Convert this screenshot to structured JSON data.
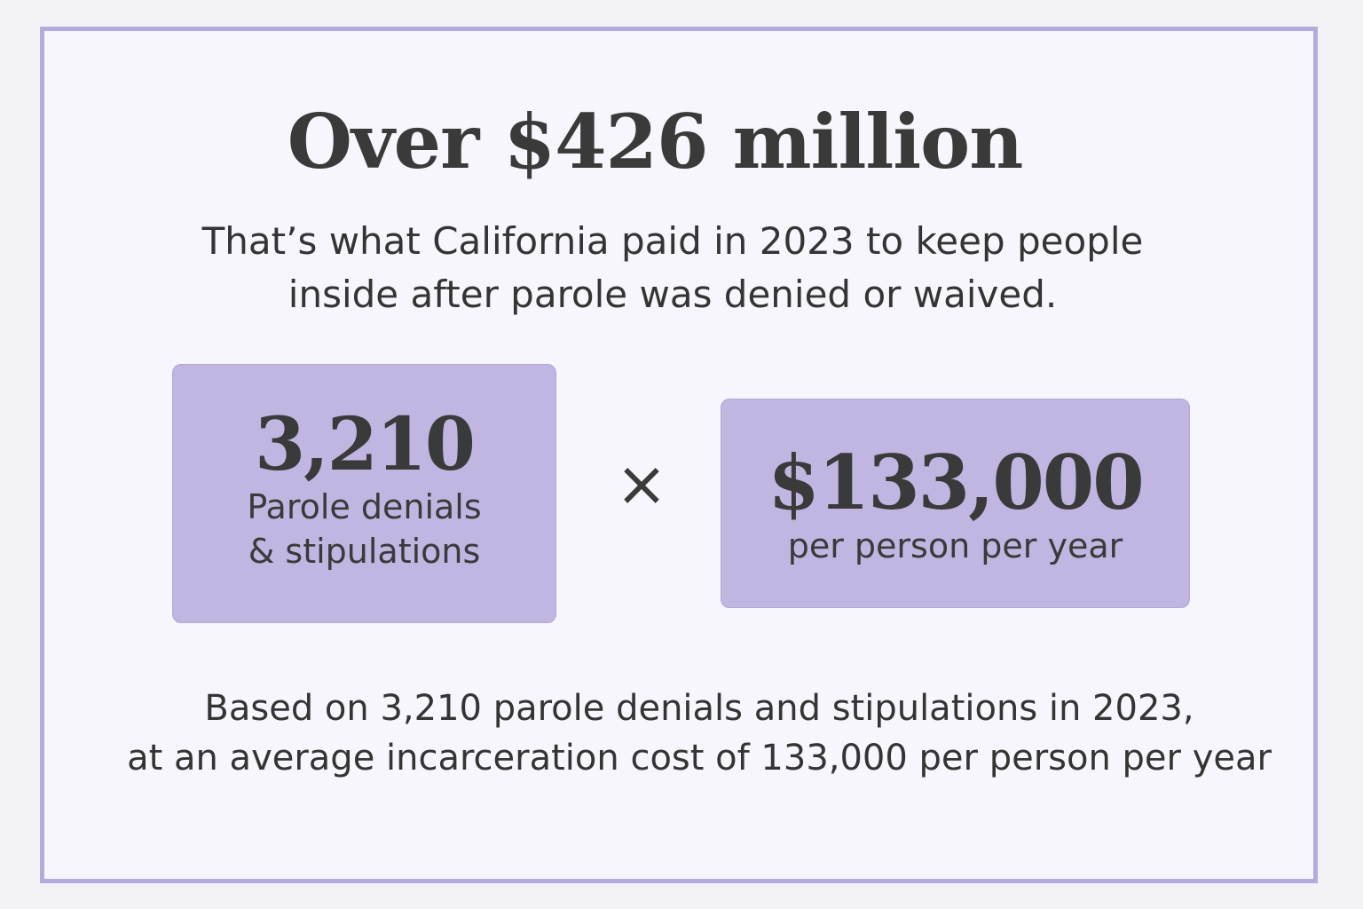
{
  "headline": "Over $426 million",
  "subtitle": {
    "line1": "That’s what California paid in 2023 to keep people",
    "line2": "inside after parole was denied or waived."
  },
  "denials_box": {
    "value": "3,210",
    "label_line1": "Parole denials",
    "label_line2": "& stipulations"
  },
  "operator": "×",
  "cost_box": {
    "value": "$133,000",
    "label": "per person per year"
  },
  "footnote": {
    "line1": "Based on 3,210 parole denials and stipulations in 2023,",
    "line2": "at an average incarceration cost of 133,000 per person per year"
  },
  "colors": {
    "frame_border": "#b4aadb",
    "box_fill": "#c1b6e1",
    "text": "#3a3a3a",
    "background": "#f7f6fc"
  }
}
